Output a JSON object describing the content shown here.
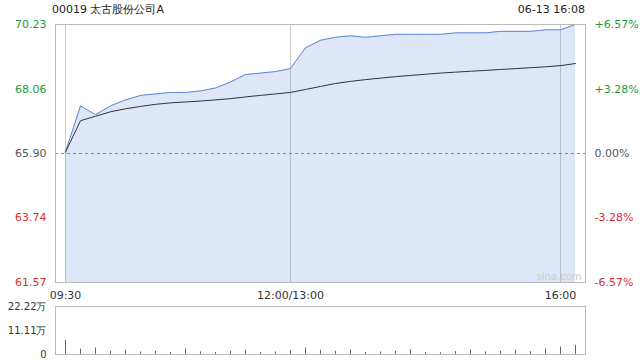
{
  "chart_data": [
    {
      "type": "line",
      "title": "00019 太古股份公司A",
      "timestamp": "06-13 16:08",
      "watermark": "sina.com",
      "categories": [
        "09:30",
        null,
        null,
        null,
        null,
        null,
        null,
        null,
        null,
        null,
        null,
        null,
        null,
        null,
        null,
        "12:00/13:00",
        null,
        null,
        null,
        null,
        null,
        null,
        null,
        null,
        null,
        null,
        null,
        null,
        null,
        null,
        null,
        null,
        null,
        "16:00",
        null
      ],
      "series": [
        {
          "type": "area",
          "color": "#5b86d6",
          "values": [
            65.95,
            67.5,
            67.2,
            67.5,
            67.7,
            67.85,
            67.9,
            67.95,
            67.95,
            68.0,
            68.1,
            68.3,
            68.55,
            68.6,
            68.65,
            68.75,
            69.45,
            69.7,
            69.8,
            69.85,
            69.8,
            69.85,
            69.9,
            69.9,
            69.9,
            69.9,
            69.95,
            69.95,
            69.95,
            70.0,
            70.0,
            70.0,
            70.05,
            70.05,
            70.23
          ]
        },
        {
          "type": "line",
          "color": "#333333",
          "values": [
            65.95,
            67.0,
            67.15,
            67.3,
            67.4,
            67.48,
            67.55,
            67.6,
            67.63,
            67.66,
            67.7,
            67.74,
            67.8,
            67.85,
            67.9,
            67.95,
            68.05,
            68.15,
            68.25,
            68.32,
            68.38,
            68.43,
            68.48,
            68.52,
            68.56,
            68.6,
            68.63,
            68.66,
            68.69,
            68.72,
            68.75,
            68.78,
            68.81,
            68.85,
            68.92
          ]
        }
      ],
      "prev_close": 65.9,
      "ylim": [
        61.57,
        70.23
      ],
      "yticks": [
        70.23,
        68.06,
        {
          "value": 65.9,
          "label": "65.90"
        },
        63.74,
        61.57
      ],
      "y2lim": [
        -6.57,
        6.57
      ],
      "y2ticks": [
        {
          "value": 6.57,
          "label": "+6.57%"
        },
        {
          "value": 3.28,
          "label": "+3.28%"
        },
        {
          "value": 0,
          "label": "0.00%"
        },
        {
          "value": -3.28,
          "label": "-3.28%"
        },
        {
          "value": -6.57,
          "label": "-6.57%"
        }
      ],
      "grid": true
    },
    {
      "type": "bar",
      "categories": [
        "09:30",
        null,
        null,
        null,
        null,
        null,
        null,
        null,
        null,
        null,
        null,
        null,
        null,
        null,
        null,
        "12:00/13:00",
        null,
        null,
        null,
        null,
        null,
        null,
        null,
        null,
        null,
        null,
        null,
        null,
        null,
        null,
        null,
        null,
        null,
        "16:00",
        null
      ],
      "values": [
        6.5,
        2.5,
        3,
        1.5,
        2,
        1.2,
        1.5,
        1,
        2.5,
        1.2,
        1,
        1.5,
        2,
        1,
        1.2,
        1.8,
        3,
        2,
        1.5,
        2.2,
        1,
        1.2,
        1.5,
        2.2,
        1,
        0.8,
        1.4,
        2.2,
        1.2,
        1.5,
        2.0,
        1.3,
        2.5,
        3.5,
        4.2
      ],
      "color": "#666666",
      "ylim": [
        0,
        22.22
      ],
      "yticks": [
        {
          "value": 22.22,
          "label": "22.22万"
        },
        {
          "value": 11.11,
          "label": "11.11万"
        },
        0
      ],
      "tick_labels": "y"
    }
  ]
}
